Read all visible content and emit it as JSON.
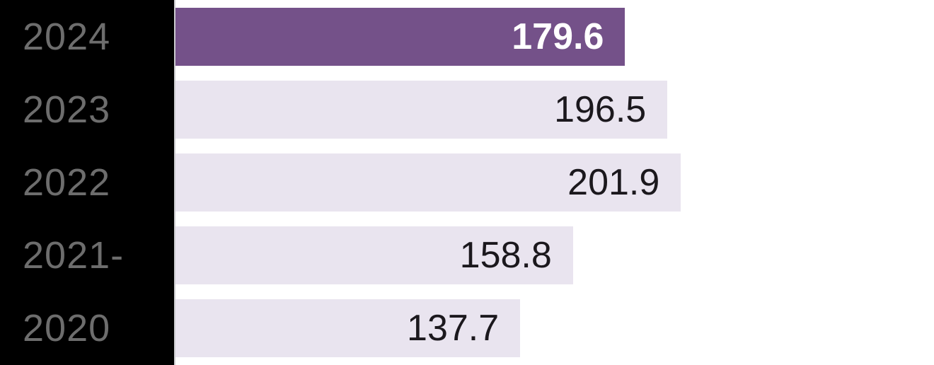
{
  "chart_data": {
    "type": "bar",
    "orientation": "horizontal",
    "categories": [
      "2024",
      "2023",
      "2022",
      "2021-",
      "2020"
    ],
    "values": [
      179.6,
      196.5,
      201.9,
      158.8,
      137.7
    ],
    "value_labels": [
      "179.6",
      "196.5",
      "201.9",
      "158.8",
      "137.7"
    ],
    "title": "",
    "xlabel": "",
    "ylabel": "",
    "xlim": [
      0,
      303
    ],
    "grid": false,
    "legend": false,
    "value_labels_position": "inside-end",
    "highlight_index": 0,
    "highlighted_category": "2024"
  },
  "colors": {
    "background": "#ffffff",
    "sidebar_panel": "#000000",
    "year_label": "#6d6d6d",
    "bar_default": "#e9e4ef",
    "bar_highlight": "#745189",
    "value_text_default": "#1b181d",
    "value_text_highlight": "#ffffff",
    "axis_line": "#cbcbce"
  }
}
